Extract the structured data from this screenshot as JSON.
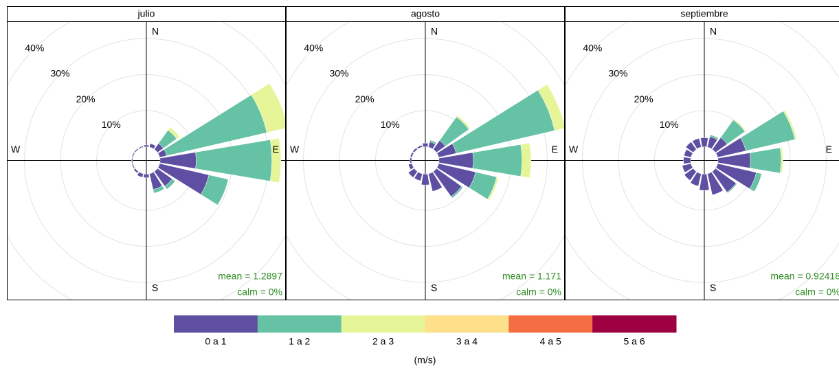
{
  "chart_data": [
    {
      "type": "windrose",
      "title": "julio",
      "x": [
        0,
        22.5,
        45,
        67.5,
        90,
        112.5,
        135,
        157.5,
        180,
        202.5,
        225,
        247.5,
        270,
        292.5,
        315,
        337.5
      ],
      "direction_labels": [
        "N",
        "E",
        "S",
        "W"
      ],
      "rlim": [
        0,
        40
      ],
      "rticks": [
        {
          "value": 10,
          "label": "10%"
        },
        {
          "value": 20,
          "label": "20%"
        },
        {
          "value": 30,
          "label": "30%"
        },
        {
          "value": 40,
          "label": "40%"
        }
      ],
      "mean_label": "mean = 1.2897",
      "calm_label": "calm = 0%",
      "legend_title": "(m/s)",
      "series": [
        {
          "name": "0 a 1",
          "color": "#5e4fa2",
          "values": [
            0.5,
            1,
            2,
            2,
            10,
            14,
            5,
            4.5,
            1,
            1,
            0.5,
            0.3,
            0.3,
            0.3,
            0.3,
            0.3
          ]
        },
        {
          "name": "1 a 2",
          "color": "#66c2a5",
          "values": [
            0,
            0,
            4.5,
            28.5,
            21,
            5.5,
            1,
            1,
            0,
            0,
            0,
            0,
            0,
            0,
            0,
            0
          ]
        },
        {
          "name": "2 a 3",
          "color": "#e6f598",
          "values": [
            0,
            0,
            1,
            6,
            2.5,
            0,
            0,
            0,
            0,
            0,
            0,
            0,
            0,
            0,
            0,
            0
          ]
        },
        {
          "name": "3 a 4",
          "color": "#fee08b",
          "values": [
            0,
            0,
            0,
            0,
            0,
            0,
            0,
            0,
            0,
            0,
            0,
            0,
            0,
            0,
            0,
            0
          ]
        },
        {
          "name": "4 a 5",
          "color": "#f46d43",
          "values": [
            0,
            0,
            0,
            0,
            0,
            0,
            0,
            0,
            0,
            0,
            0,
            0,
            0,
            0,
            0,
            0
          ]
        },
        {
          "name": "5 a 6",
          "color": "#9e0142",
          "values": [
            0,
            0,
            0,
            0,
            0,
            0,
            0,
            0,
            0,
            0,
            0,
            0,
            0,
            0,
            0,
            0
          ]
        }
      ]
    },
    {
      "type": "windrose",
      "title": "agosto",
      "x": [
        0,
        22.5,
        45,
        67.5,
        90,
        112.5,
        135,
        157.5,
        180,
        202.5,
        225,
        247.5,
        270,
        292.5,
        315,
        337.5
      ],
      "direction_labels": [
        "N",
        "E",
        "S",
        "W"
      ],
      "rlim": [
        0,
        40
      ],
      "rticks": [
        {
          "value": 10,
          "label": "10%"
        },
        {
          "value": 20,
          "label": "20%"
        },
        {
          "value": 30,
          "label": "30%"
        },
        {
          "value": 40,
          "label": "40%"
        }
      ],
      "mean_label": "mean = 1.171",
      "calm_label": "calm = 0%",
      "series": [
        {
          "name": "0 a 1",
          "color": "#5e4fa2",
          "values": [
            1,
            1.5,
            3,
            5,
            9.5,
            10.5,
            8.5,
            5,
            3,
            2,
            2,
            1,
            0.5,
            0.5,
            0.5,
            0.5
          ]
        },
        {
          "name": "1 a 2",
          "color": "#66c2a5",
          "values": [
            0,
            0.5,
            8,
            28,
            13.5,
            6,
            0.5,
            0,
            0,
            0,
            0,
            0,
            0,
            0,
            0,
            0
          ]
        },
        {
          "name": "2 a 3",
          "color": "#e6f598",
          "values": [
            0,
            0,
            0.5,
            3,
            2.5,
            0.5,
            0,
            0,
            0,
            0,
            0,
            0,
            0,
            0,
            0,
            0
          ]
        },
        {
          "name": "3 a 4",
          "color": "#fee08b",
          "values": [
            0,
            0,
            0,
            0,
            0,
            0,
            0,
            0,
            0,
            0,
            0,
            0,
            0,
            0,
            0,
            0
          ]
        },
        {
          "name": "4 a 5",
          "color": "#f46d43",
          "values": [
            0,
            0,
            0,
            0,
            0,
            0,
            0,
            0,
            0,
            0,
            0,
            0,
            0,
            0,
            0,
            0
          ]
        },
        {
          "name": "5 a 6",
          "color": "#9e0142",
          "values": [
            0,
            0,
            0,
            0,
            0,
            0,
            0,
            0,
            0,
            0,
            0,
            0,
            0,
            0,
            0,
            0
          ]
        }
      ]
    },
    {
      "type": "windrose",
      "title": "septiembre",
      "x": [
        0,
        22.5,
        45,
        67.5,
        90,
        112.5,
        135,
        157.5,
        180,
        202.5,
        225,
        247.5,
        270,
        292.5,
        315,
        337.5
      ],
      "direction_labels": [
        "N",
        "E",
        "S",
        "W"
      ],
      "rlim": [
        0,
        40
      ],
      "rticks": [
        {
          "value": 10,
          "label": "10%"
        },
        {
          "value": 20,
          "label": "20%"
        },
        {
          "value": 30,
          "label": "30%"
        },
        {
          "value": 40,
          "label": "40%"
        }
      ],
      "mean_label": "mean = 0.92418",
      "calm_label": "calm = 0%",
      "series": [
        {
          "name": "0 a 1",
          "color": "#5e4fa2",
          "values": [
            2.5,
            3,
            4,
            8,
            9,
            11,
            7,
            6,
            4.5,
            3.5,
            3,
            2.5,
            2,
            2,
            2.5,
            2.5
          ]
        },
        {
          "name": "1 a 2",
          "color": "#66c2a5",
          "values": [
            0,
            0.5,
            6,
            14,
            8.5,
            1.5,
            0.3,
            0,
            0,
            0,
            0,
            0,
            0,
            0,
            0,
            0
          ]
        },
        {
          "name": "2 a 3",
          "color": "#e6f598",
          "values": [
            0,
            0,
            0.3,
            0.5,
            0.5,
            0,
            0,
            0,
            0,
            0,
            0,
            0,
            0,
            0,
            0,
            0
          ]
        },
        {
          "name": "3 a 4",
          "color": "#fee08b",
          "values": [
            0,
            0,
            0,
            0,
            0,
            0,
            0,
            0,
            0,
            0,
            0,
            0,
            0,
            0,
            0,
            0
          ]
        },
        {
          "name": "4 a 5",
          "color": "#f46d43",
          "values": [
            0,
            0,
            0,
            0,
            0,
            0,
            0,
            0,
            0,
            0,
            0,
            0,
            0,
            0,
            0,
            0
          ]
        },
        {
          "name": "5 a 6",
          "color": "#9e0142",
          "values": [
            0,
            0,
            0,
            0,
            0,
            0,
            0,
            0,
            0,
            0,
            0,
            0,
            0,
            0,
            0,
            0
          ]
        }
      ]
    }
  ]
}
